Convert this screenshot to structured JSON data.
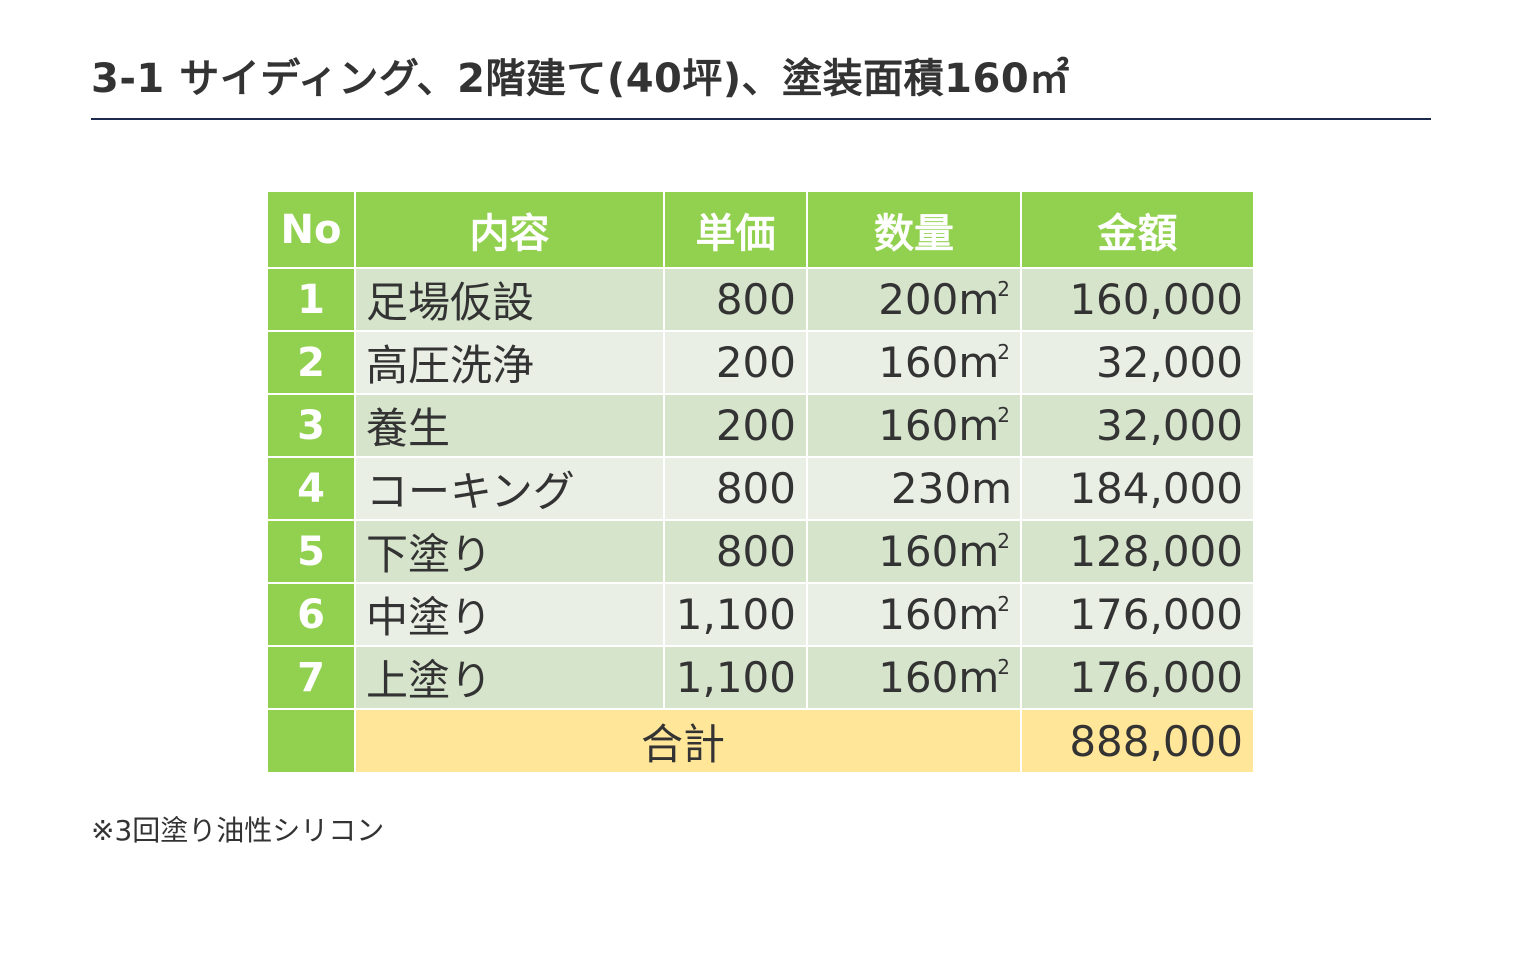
{
  "heading": "3-1 サイディング、2階建て(40坪)、塗装面積160㎡",
  "table": {
    "headers": [
      "No",
      "内容",
      "単価",
      "数量",
      "金額"
    ],
    "rows": [
      {
        "no": "1",
        "item": "足場仮設",
        "unit_price": "800",
        "qty": "200m",
        "qty_sup": "2",
        "amount": "160,000"
      },
      {
        "no": "2",
        "item": "高圧洗浄",
        "unit_price": "200",
        "qty": "160m",
        "qty_sup": "2",
        "amount": "32,000"
      },
      {
        "no": "3",
        "item": "養生",
        "unit_price": "200",
        "qty": "160m",
        "qty_sup": "2",
        "amount": "32,000"
      },
      {
        "no": "4",
        "item": "コーキング",
        "unit_price": "800",
        "qty": "230m",
        "qty_sup": "",
        "amount": "184,000"
      },
      {
        "no": "5",
        "item": "下塗り",
        "unit_price": "800",
        "qty": "160m",
        "qty_sup": "2",
        "amount": "128,000"
      },
      {
        "no": "6",
        "item": "中塗り",
        "unit_price": "1,100",
        "qty": "160m",
        "qty_sup": "2",
        "amount": "176,000"
      },
      {
        "no": "7",
        "item": "上塗り",
        "unit_price": "1,100",
        "qty": "160m",
        "qty_sup": "2",
        "amount": "176,000"
      }
    ],
    "total": {
      "label": "合計",
      "amount": "888,000"
    }
  },
  "note": "※3回塗り油性シリコン",
  "colors": {
    "header_green": "#92d050",
    "row_dark": "#d6e4cc",
    "row_light": "#e9efe5",
    "total_yellow": "#ffe699",
    "heading_rule": "#1c2a4d"
  }
}
